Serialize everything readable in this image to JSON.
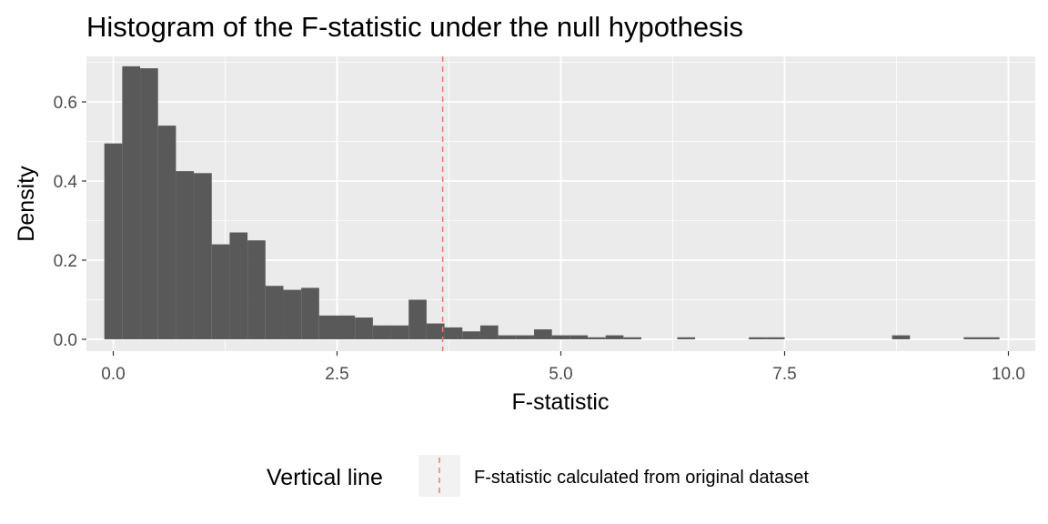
{
  "chart_data": {
    "type": "bar",
    "title": "Histogram of the F-statistic under the null hypothesis",
    "xlabel": "F-statistic",
    "ylabel": "Density",
    "xlim": [
      -0.3,
      10.3
    ],
    "ylim": [
      -0.03,
      0.715
    ],
    "x_ticks": [
      0.0,
      2.5,
      5.0,
      7.5,
      10.0
    ],
    "x_tick_labels": [
      "0.0",
      "2.5",
      "5.0",
      "7.5",
      "10.0"
    ],
    "y_ticks": [
      0.0,
      0.2,
      0.4,
      0.6
    ],
    "y_tick_labels": [
      "0.0",
      "0.2",
      "0.4",
      "0.6"
    ],
    "grid": true,
    "bin_width": 0.2,
    "bin_starts": [
      -0.1,
      0.1,
      0.3,
      0.5,
      0.7,
      0.9,
      1.1,
      1.3,
      1.5,
      1.7,
      1.9,
      2.1,
      2.3,
      2.5,
      2.7,
      2.9,
      3.1,
      3.3,
      3.5,
      3.7,
      3.9,
      4.1,
      4.3,
      4.5,
      4.7,
      4.9,
      5.1,
      5.3,
      5.5,
      5.7,
      6.3,
      7.1,
      7.3,
      8.7,
      9.5,
      9.7
    ],
    "densities": [
      0.495,
      0.69,
      0.685,
      0.54,
      0.425,
      0.42,
      0.24,
      0.27,
      0.25,
      0.135,
      0.125,
      0.13,
      0.06,
      0.06,
      0.055,
      0.035,
      0.035,
      0.1,
      0.04,
      0.03,
      0.02,
      0.035,
      0.01,
      0.01,
      0.025,
      0.01,
      0.01,
      0.005,
      0.01,
      0.005,
      0.005,
      0.005,
      0.005,
      0.01,
      0.005,
      0.005
    ],
    "bar_color": "#595959",
    "vertical_line": {
      "x": 3.68,
      "color": "#F8766D",
      "style": "dashed"
    },
    "legend": {
      "title": "Vertical line",
      "label": "F-statistic calculated from original dataset",
      "position": "bottom"
    },
    "panel_background": "#EBEBEB",
    "grid_color": "#FFFFFF"
  }
}
